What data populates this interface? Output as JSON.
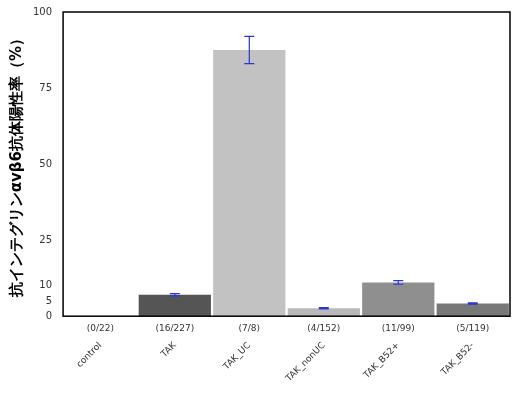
{
  "chart_data": {
    "type": "bar",
    "y_label": "抗インテグリンαvβ6抗体陽性率（%）",
    "categories": [
      "control",
      "TAK",
      "TAK_UC",
      "TAK_nonUC",
      "TAK_B52+",
      "TAK_B52-"
    ],
    "counts": [
      "(0/22)",
      "(16/227)",
      "(7/8)",
      "(4/152)",
      "(11/99)",
      "(5/119)"
    ],
    "values": [
      0,
      7.05,
      87.5,
      2.63,
      11.1,
      4.2
    ],
    "errors": [
      null,
      0.4,
      4.5,
      0.2,
      0.6,
      0.2
    ],
    "colors": [
      "#d0d0d0",
      "#555555",
      "#c2c2c2",
      "#b8b8b8",
      "#8f8f8f",
      "#787878"
    ],
    "ylim": [
      0,
      100
    ],
    "yticks": [
      0,
      5,
      10,
      25,
      50,
      75,
      100
    ],
    "grid": false
  }
}
